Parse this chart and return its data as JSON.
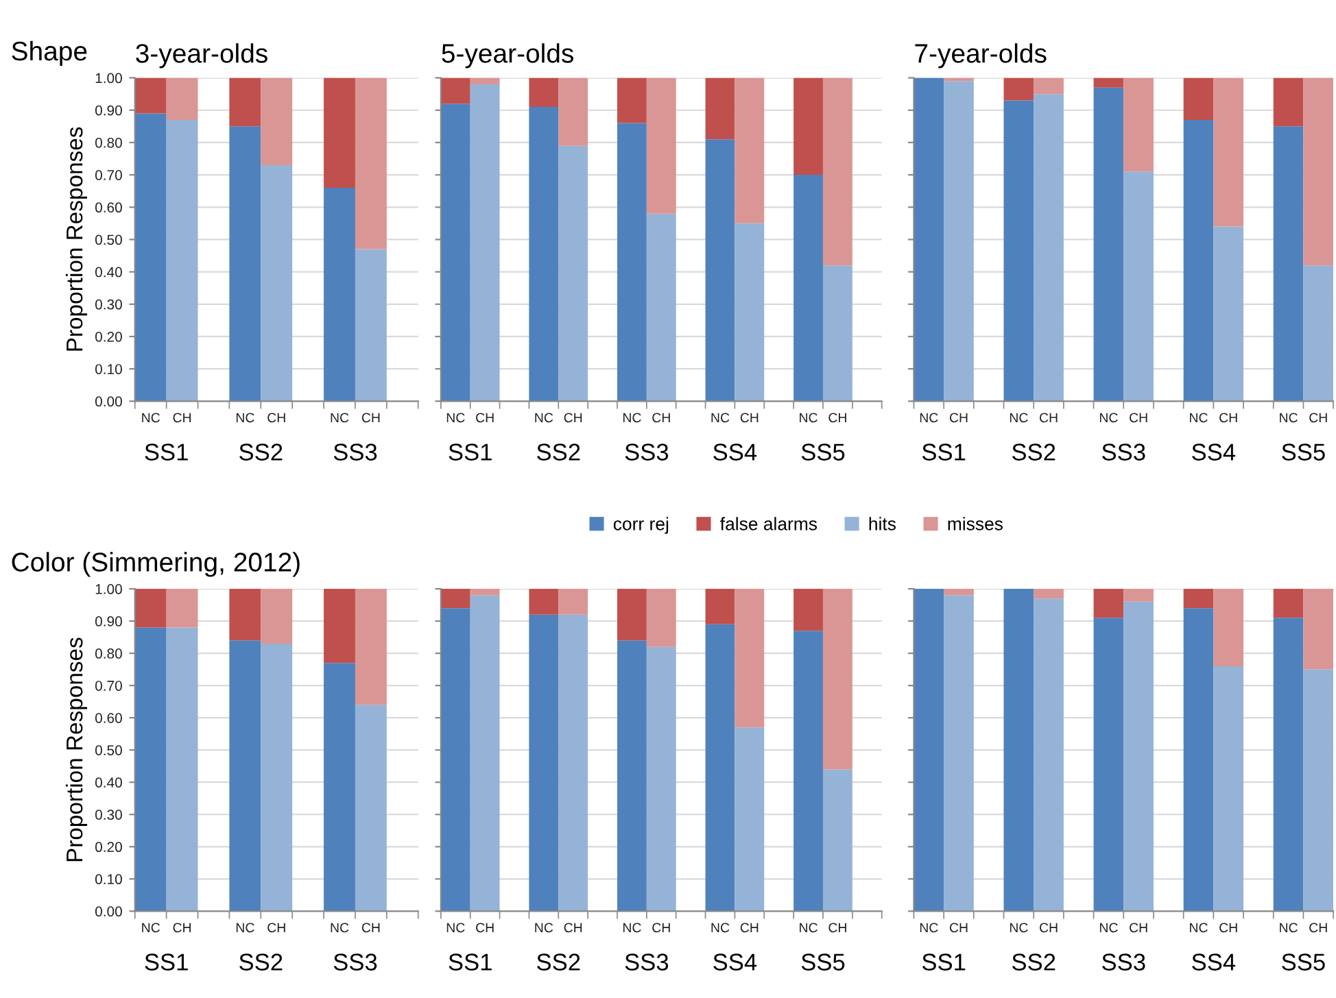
{
  "chart_data": [
    {
      "type": "bar",
      "stacked": true,
      "title": "3-year-olds",
      "subtitle": "Shape",
      "ylabel": "Proportion Responses",
      "categories": [
        "NC",
        "CH",
        null,
        "NC",
        "CH",
        null,
        "NC",
        "CH",
        null
      ],
      "annotations": [
        "SS1",
        "SS2",
        "SS3"
      ],
      "ylim": [
        0,
        1
      ],
      "yticks": [
        {
          "value": 0,
          "label": "0.00"
        },
        {
          "value": 0.1,
          "label": "0.10"
        },
        {
          "value": 0.2,
          "label": "0.20"
        },
        {
          "value": 0.3,
          "label": "0.30"
        },
        {
          "value": 0.4,
          "label": "0.40"
        },
        {
          "value": 0.5,
          "label": "0.50"
        },
        {
          "value": 0.6,
          "label": "0.60"
        },
        {
          "value": 0.7,
          "label": "0.70"
        },
        {
          "value": 0.8,
          "label": "0.80"
        },
        {
          "value": 0.9,
          "label": "0.90"
        },
        {
          "value": 1,
          "label": "1.00"
        }
      ],
      "grid": "y",
      "series": [
        {
          "color": "#4f81bd",
          "values": [
            0.89,
            null,
            null,
            0.85,
            null,
            null,
            0.66,
            null,
            null
          ]
        },
        {
          "color": "#c0504d",
          "values": [
            0.11,
            null,
            null,
            0.15,
            null,
            null,
            0.34,
            null,
            null
          ]
        },
        {
          "color": "#95b3d7",
          "values": [
            null,
            0.87,
            null,
            null,
            0.73,
            null,
            null,
            0.47,
            null
          ]
        },
        {
          "color": "#da9694",
          "values": [
            null,
            0.13,
            null,
            null,
            0.27,
            null,
            null,
            0.53,
            null
          ]
        }
      ]
    },
    {
      "type": "bar",
      "stacked": true,
      "title": "5-year-olds",
      "categories": [
        "NC",
        "CH",
        null,
        "NC",
        "CH",
        null,
        "NC",
        "CH",
        null,
        "NC",
        "CH",
        null,
        "NC",
        "CH",
        null
      ],
      "annotations": [
        "SS1",
        "SS2",
        "SS3",
        "SS4",
        "SS5"
      ],
      "ylim": [
        0,
        1
      ],
      "yticks": [
        {
          "value": 0,
          "label": null
        },
        {
          "value": 0.1,
          "label": null
        },
        {
          "value": 0.2,
          "label": null
        },
        {
          "value": 0.3,
          "label": null
        },
        {
          "value": 0.4,
          "label": null
        },
        {
          "value": 0.5,
          "label": null
        },
        {
          "value": 0.6,
          "label": null
        },
        {
          "value": 0.7,
          "label": null
        },
        {
          "value": 0.8,
          "label": null
        },
        {
          "value": 0.9,
          "label": null
        },
        {
          "value": 1,
          "label": null
        }
      ],
      "tick_labels": "x",
      "grid": "y",
      "series": [
        {
          "color": "#4f81bd",
          "values": [
            0.92,
            null,
            null,
            0.91,
            null,
            null,
            0.86,
            null,
            null,
            0.81,
            null,
            null,
            0.7,
            null,
            null
          ]
        },
        {
          "color": "#c0504d",
          "values": [
            0.08,
            null,
            null,
            0.09,
            null,
            null,
            0.14,
            null,
            null,
            0.19,
            null,
            null,
            0.3,
            null,
            null
          ]
        },
        {
          "color": "#95b3d7",
          "values": [
            null,
            0.98,
            null,
            null,
            0.79,
            null,
            null,
            0.58,
            null,
            null,
            0.55,
            null,
            null,
            0.42,
            null
          ]
        },
        {
          "color": "#da9694",
          "values": [
            null,
            0.02,
            null,
            null,
            0.21,
            null,
            null,
            0.42,
            null,
            null,
            0.45,
            null,
            null,
            0.58,
            null
          ]
        }
      ]
    },
    {
      "type": "bar",
      "stacked": true,
      "title": "7-year-olds",
      "categories": [
        "NC",
        "CH",
        null,
        "NC",
        "CH",
        null,
        "NC",
        "CH",
        null,
        "NC",
        "CH",
        null,
        "NC",
        "CH"
      ],
      "annotations": [
        "SS1",
        "SS2",
        "SS3",
        "SS4",
        "SS5"
      ],
      "ylim": [
        0,
        1
      ],
      "yticks": [
        {
          "value": 0,
          "label": null
        },
        {
          "value": 0.1,
          "label": null
        },
        {
          "value": 0.2,
          "label": null
        },
        {
          "value": 0.3,
          "label": null
        },
        {
          "value": 0.4,
          "label": null
        },
        {
          "value": 0.5,
          "label": null
        },
        {
          "value": 0.6,
          "label": null
        },
        {
          "value": 0.7,
          "label": null
        },
        {
          "value": 0.8,
          "label": null
        },
        {
          "value": 0.9,
          "label": null
        },
        {
          "value": 1,
          "label": null
        }
      ],
      "tick_labels": "x",
      "grid": "y",
      "series": [
        {
          "color": "#4f81bd",
          "values": [
            1.0,
            null,
            null,
            0.93,
            null,
            null,
            0.97,
            null,
            null,
            0.87,
            null,
            null,
            0.85,
            null
          ]
        },
        {
          "color": "#c0504d",
          "values": [
            null,
            null,
            null,
            0.07,
            null,
            null,
            0.03,
            null,
            null,
            0.13,
            null,
            null,
            0.15,
            null
          ]
        },
        {
          "color": "#95b3d7",
          "values": [
            null,
            0.99,
            null,
            null,
            0.95,
            null,
            null,
            0.71,
            null,
            null,
            0.54,
            null,
            null,
            0.42
          ]
        },
        {
          "color": "#da9694",
          "values": [
            null,
            0.01,
            null,
            null,
            0.05,
            null,
            null,
            0.29,
            null,
            null,
            0.46,
            null,
            null,
            0.58
          ]
        }
      ]
    },
    {
      "type": "bar",
      "stacked": true,
      "subtitle": "Color (Simmering, 2012)",
      "ylabel": "Proportion Responses",
      "categories": [
        "NC",
        "CH",
        null,
        "NC",
        "CH",
        null,
        "NC",
        "CH",
        null
      ],
      "annotations": [
        "SS1",
        "SS2",
        "SS3"
      ],
      "ylim": [
        0,
        1
      ],
      "yticks": [
        {
          "value": 0,
          "label": "0.00"
        },
        {
          "value": 0.1,
          "label": "0.10"
        },
        {
          "value": 0.2,
          "label": "0.20"
        },
        {
          "value": 0.3,
          "label": "0.30"
        },
        {
          "value": 0.4,
          "label": "0.40"
        },
        {
          "value": 0.5,
          "label": "0.50"
        },
        {
          "value": 0.6,
          "label": "0.60"
        },
        {
          "value": 0.7,
          "label": "0.70"
        },
        {
          "value": 0.8,
          "label": "0.80"
        },
        {
          "value": 0.9,
          "label": "0.90"
        },
        {
          "value": 1,
          "label": "1.00"
        }
      ],
      "grid": "y",
      "series": [
        {
          "color": "#4f81bd",
          "values": [
            0.88,
            null,
            null,
            0.84,
            null,
            null,
            0.77,
            null,
            null
          ]
        },
        {
          "color": "#c0504d",
          "values": [
            0.12,
            null,
            null,
            0.16,
            null,
            null,
            0.23,
            null,
            null
          ]
        },
        {
          "color": "#95b3d7",
          "values": [
            null,
            0.88,
            null,
            null,
            0.83,
            null,
            null,
            0.64,
            null
          ]
        },
        {
          "color": "#da9694",
          "values": [
            null,
            0.12,
            null,
            null,
            0.17,
            null,
            null,
            0.36,
            null
          ]
        }
      ]
    },
    {
      "type": "bar",
      "stacked": true,
      "categories": [
        "NC",
        "CH",
        null,
        "NC",
        "CH",
        null,
        "NC",
        "CH",
        null,
        "NC",
        "CH",
        null,
        "NC",
        "CH",
        null
      ],
      "annotations": [
        "SS1",
        "SS2",
        "SS3",
        "SS4",
        "SS5"
      ],
      "ylim": [
        0,
        1
      ],
      "yticks": [
        {
          "value": 0,
          "label": null
        },
        {
          "value": 0.1,
          "label": null
        },
        {
          "value": 0.2,
          "label": null
        },
        {
          "value": 0.3,
          "label": null
        },
        {
          "value": 0.4,
          "label": null
        },
        {
          "value": 0.5,
          "label": null
        },
        {
          "value": 0.6,
          "label": null
        },
        {
          "value": 0.7,
          "label": null
        },
        {
          "value": 0.8,
          "label": null
        },
        {
          "value": 0.9,
          "label": null
        },
        {
          "value": 1,
          "label": null
        }
      ],
      "tick_labels": "x",
      "grid": "y",
      "legend": "top",
      "series": [
        {
          "name": "corr rej",
          "color": "#4f81bd",
          "values": [
            0.94,
            null,
            null,
            0.92,
            null,
            null,
            0.84,
            null,
            null,
            0.89,
            null,
            null,
            0.87,
            null,
            null
          ]
        },
        {
          "name": "false alarms",
          "color": "#c0504d",
          "values": [
            0.06,
            null,
            null,
            0.08,
            null,
            null,
            0.16,
            null,
            null,
            0.11,
            null,
            null,
            0.13,
            null,
            null
          ]
        },
        {
          "name": "hits",
          "color": "#95b3d7",
          "values": [
            null,
            0.98,
            null,
            null,
            0.92,
            null,
            null,
            0.82,
            null,
            null,
            0.57,
            null,
            null,
            0.44,
            null
          ]
        },
        {
          "name": "misses",
          "color": "#da9694",
          "values": [
            null,
            0.02,
            null,
            null,
            0.08,
            null,
            null,
            0.18,
            null,
            null,
            0.43,
            null,
            null,
            0.56,
            null
          ]
        }
      ]
    },
    {
      "type": "bar",
      "stacked": true,
      "categories": [
        "NC",
        "CH",
        null,
        "NC",
        "CH",
        null,
        "NC",
        "CH",
        null,
        "NC",
        "CH",
        null,
        "NC",
        "CH"
      ],
      "annotations": [
        "SS1",
        "SS2",
        "SS3",
        "SS4",
        "SS5"
      ],
      "ylim": [
        0,
        1
      ],
      "yticks": [
        {
          "value": 0,
          "label": null
        },
        {
          "value": 0.1,
          "label": null
        },
        {
          "value": 0.2,
          "label": null
        },
        {
          "value": 0.3,
          "label": null
        },
        {
          "value": 0.4,
          "label": null
        },
        {
          "value": 0.5,
          "label": null
        },
        {
          "value": 0.6,
          "label": null
        },
        {
          "value": 0.7,
          "label": null
        },
        {
          "value": 0.8,
          "label": null
        },
        {
          "value": 0.9,
          "label": null
        },
        {
          "value": 1,
          "label": null
        }
      ],
      "tick_labels": "x",
      "grid": "y",
      "series": [
        {
          "color": "#4f81bd",
          "values": [
            1.0,
            null,
            null,
            1.0,
            null,
            null,
            0.91,
            null,
            null,
            0.94,
            null,
            null,
            0.91,
            null
          ]
        },
        {
          "color": "#c0504d",
          "values": [
            null,
            null,
            null,
            null,
            null,
            null,
            0.09,
            null,
            null,
            0.06,
            null,
            null,
            0.09,
            null
          ]
        },
        {
          "color": "#95b3d7",
          "values": [
            null,
            0.98,
            null,
            null,
            0.97,
            null,
            null,
            0.96,
            null,
            null,
            0.76,
            null,
            null,
            0.75
          ]
        },
        {
          "color": "#da9694",
          "values": [
            null,
            0.02,
            null,
            null,
            0.03,
            null,
            null,
            0.04,
            null,
            null,
            0.24,
            null,
            null,
            0.25
          ]
        }
      ]
    }
  ]
}
